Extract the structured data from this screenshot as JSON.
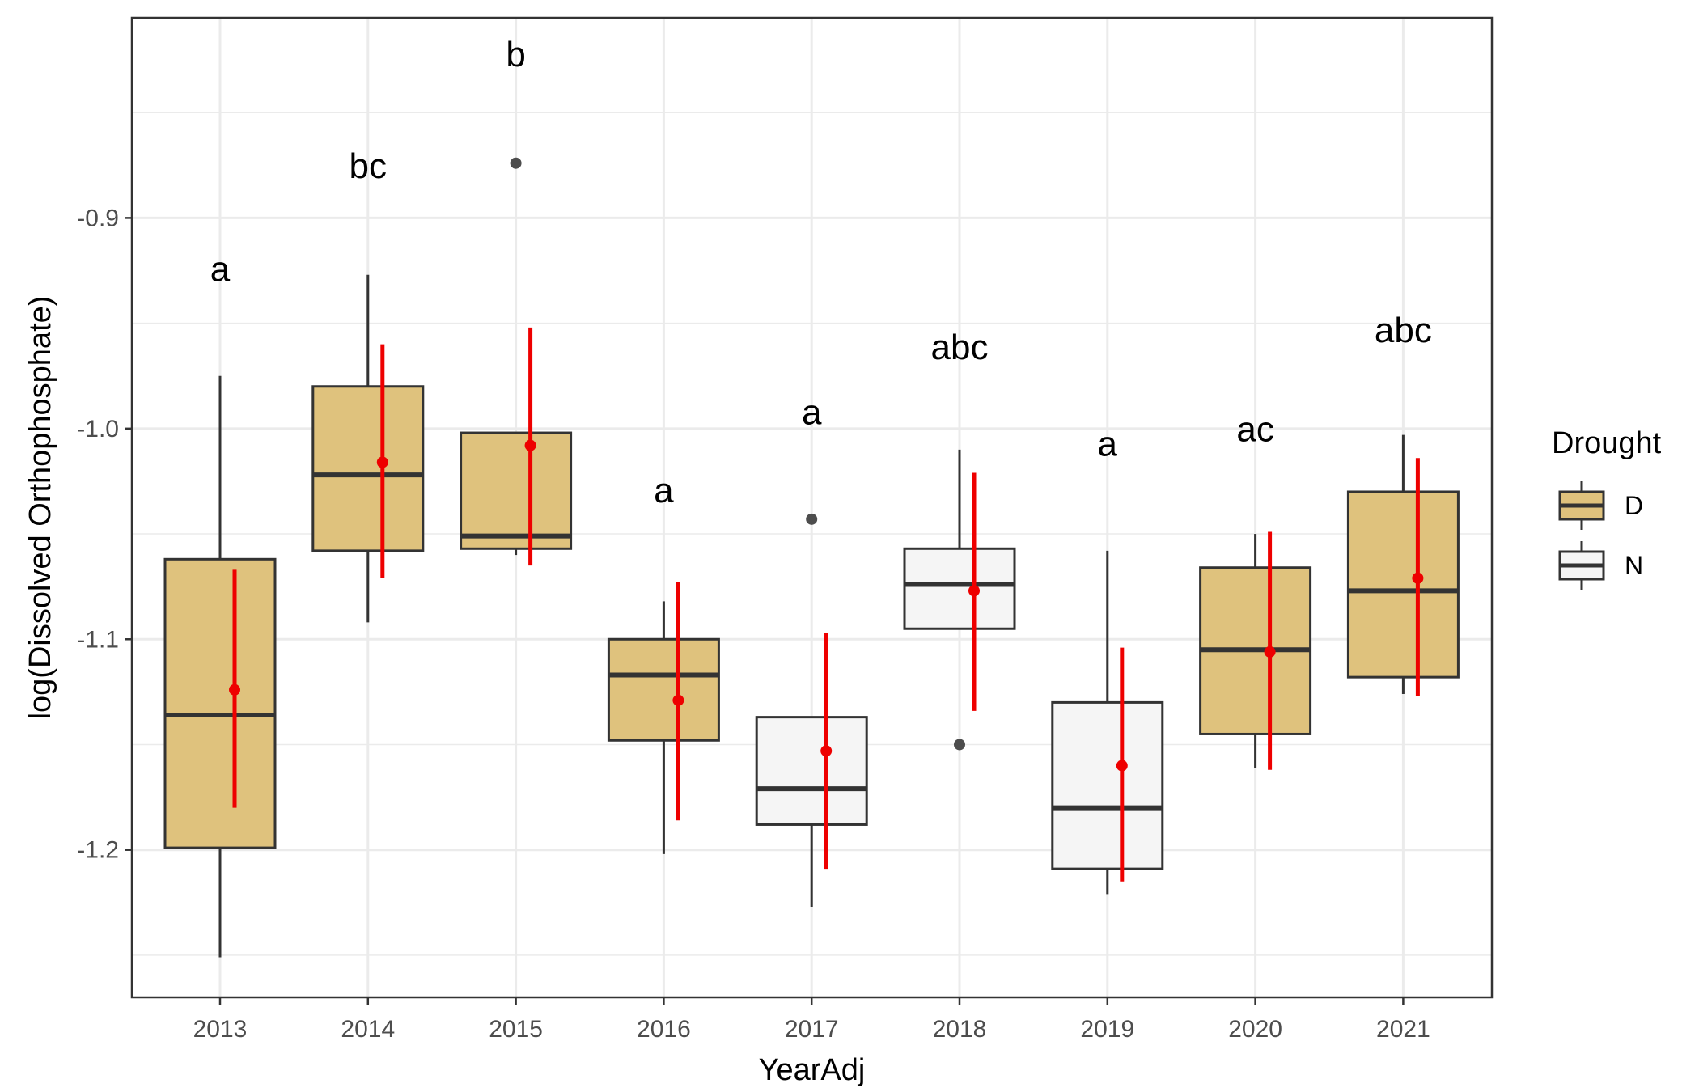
{
  "chart_data": {
    "type": "boxplot",
    "xlabel": "YearAdj",
    "ylabel": "log(Dissolved Orthophosphate)",
    "ylim": [
      -1.27,
      -0.805
    ],
    "yticks": [
      -1.2,
      -1.1,
      -1.0,
      -0.9
    ],
    "ytick_labels": [
      "-1.2",
      "-1.1",
      "-1.0",
      "-0.9"
    ],
    "grid": true,
    "legend": {
      "title": "Drought",
      "position": "right",
      "items": [
        {
          "label": "D",
          "color": "#dfc27d"
        },
        {
          "label": "N",
          "color": "#f5f5f5"
        }
      ]
    },
    "colors": {
      "D": "#dfc27d",
      "N": "#f5f5f5",
      "mean": "#ee0000",
      "box_line": "#333333",
      "grid": "#ebebeb"
    },
    "categories": [
      "2013",
      "2014",
      "2015",
      "2016",
      "2017",
      "2018",
      "2019",
      "2020",
      "2021"
    ],
    "boxes": [
      {
        "year": "2013",
        "drought": "D",
        "whisker_low": -1.251,
        "q1": -1.199,
        "median": -1.136,
        "q3": -1.062,
        "whisker_high": -0.975,
        "outliers": [],
        "mean": -1.124,
        "ci": [
          -1.18,
          -1.067
        ],
        "letter": "a",
        "letter_y": -0.93
      },
      {
        "year": "2014",
        "drought": "D",
        "whisker_low": -1.092,
        "q1": -1.058,
        "median": -1.022,
        "q3": -0.98,
        "whisker_high": -0.927,
        "outliers": [],
        "mean": -1.016,
        "ci": [
          -1.071,
          -0.96
        ],
        "letter": "bc",
        "letter_y": -0.881
      },
      {
        "year": "2015",
        "drought": "D",
        "whisker_low": -1.06,
        "q1": -1.057,
        "median": -1.051,
        "q3": -1.002,
        "whisker_high": -1.002,
        "outliers": [
          -0.874
        ],
        "mean": -1.008,
        "ci": [
          -1.065,
          -0.952
        ],
        "letter": "b",
        "letter_y": -0.828
      },
      {
        "year": "2016",
        "drought": "D",
        "whisker_low": -1.202,
        "q1": -1.148,
        "median": -1.117,
        "q3": -1.1,
        "whisker_high": -1.082,
        "outliers": [],
        "mean": -1.129,
        "ci": [
          -1.186,
          -1.073
        ],
        "letter": "a",
        "letter_y": -1.035
      },
      {
        "year": "2017",
        "drought": "N",
        "whisker_low": -1.227,
        "q1": -1.188,
        "median": -1.171,
        "q3": -1.137,
        "whisker_high": -1.137,
        "outliers": [
          -1.043
        ],
        "mean": -1.153,
        "ci": [
          -1.209,
          -1.097
        ],
        "letter": "a",
        "letter_y": -0.998
      },
      {
        "year": "2018",
        "drought": "N",
        "whisker_low": -1.095,
        "q1": -1.095,
        "median": -1.074,
        "q3": -1.057,
        "whisker_high": -1.01,
        "outliers": [
          -1.15
        ],
        "mean": -1.077,
        "ci": [
          -1.134,
          -1.021
        ],
        "letter": "abc",
        "letter_y": -0.967
      },
      {
        "year": "2019",
        "drought": "N",
        "whisker_low": -1.221,
        "q1": -1.209,
        "median": -1.18,
        "q3": -1.13,
        "whisker_high": -1.058,
        "outliers": [],
        "mean": -1.16,
        "ci": [
          -1.215,
          -1.104
        ],
        "letter": "a",
        "letter_y": -1.013
      },
      {
        "year": "2020",
        "drought": "D",
        "whisker_low": -1.161,
        "q1": -1.145,
        "median": -1.105,
        "q3": -1.066,
        "whisker_high": -1.05,
        "outliers": [],
        "mean": -1.106,
        "ci": [
          -1.162,
          -1.049
        ],
        "letter": "ac",
        "letter_y": -1.006
      },
      {
        "year": "2021",
        "drought": "D",
        "whisker_low": -1.126,
        "q1": -1.118,
        "median": -1.077,
        "q3": -1.03,
        "whisker_high": -1.003,
        "outliers": [],
        "mean": -1.071,
        "ci": [
          -1.127,
          -1.014
        ],
        "letter": "abc",
        "letter_y": -0.959
      }
    ]
  }
}
